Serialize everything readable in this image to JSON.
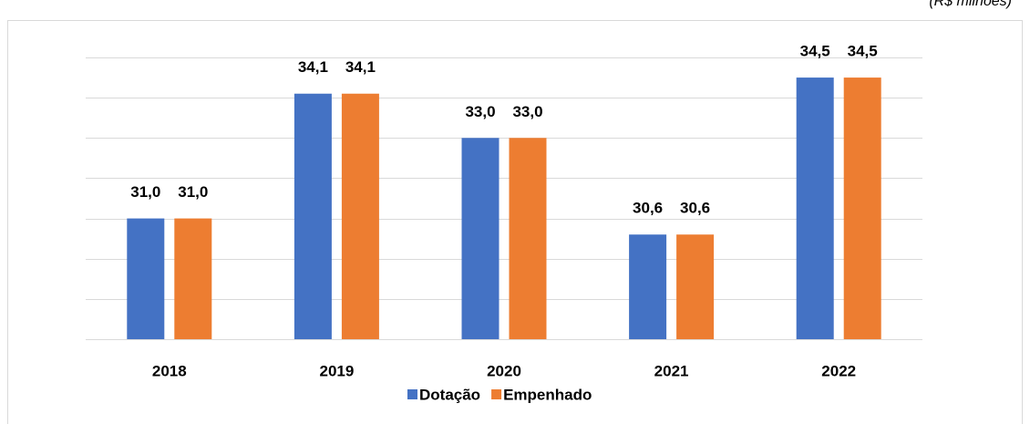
{
  "chart_data": {
    "type": "bar",
    "subtitle": "(R$ milhões)",
    "categories": [
      "2018",
      "2019",
      "2020",
      "2021",
      "2022"
    ],
    "series": [
      {
        "name": "Dotação",
        "color": "#4472c4",
        "values": [
          31.0,
          34.1,
          33.0,
          30.6,
          34.5
        ],
        "value_labels": [
          "31,0",
          "34,1",
          "33,0",
          "30,6",
          "34,5"
        ]
      },
      {
        "name": "Empenhado",
        "color": "#ed7d31",
        "values": [
          31.0,
          34.1,
          33.0,
          30.6,
          34.5
        ],
        "value_labels": [
          "31,0",
          "34,1",
          "33,0",
          "30,6",
          "34,5"
        ]
      }
    ],
    "ylim": [
      28,
      35
    ],
    "yticks": [
      28,
      29,
      30,
      31,
      32,
      33,
      34,
      35
    ],
    "grid": true,
    "legend": "bottom"
  }
}
